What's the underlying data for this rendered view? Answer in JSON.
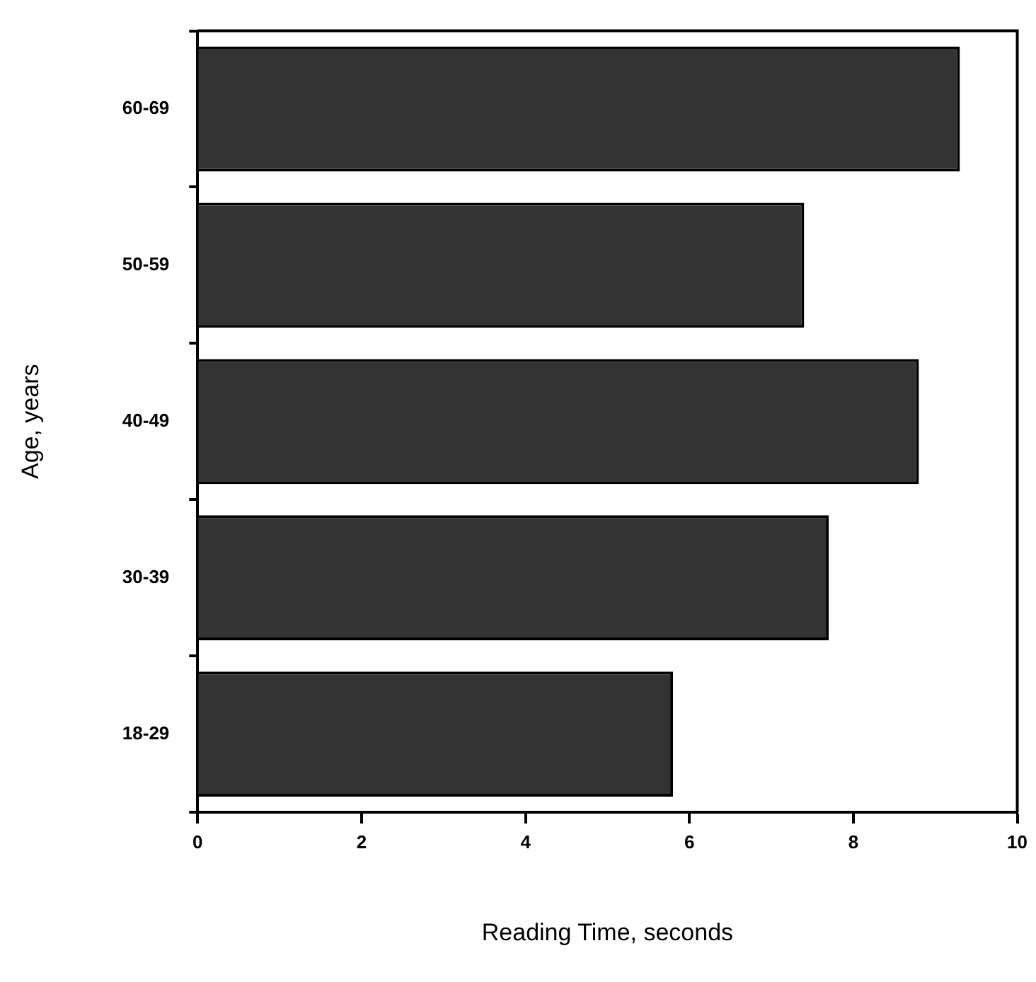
{
  "chart_data": {
    "type": "bar",
    "orientation": "horizontal",
    "xlabel": "Reading Time, seconds",
    "ylabel": "Age, years",
    "categories": [
      "60-69",
      "50-59",
      "40-49",
      "30-39",
      "18-29"
    ],
    "values": [
      9.3,
      7.4,
      8.8,
      7.7,
      5.8
    ],
    "color": "#333333",
    "xlim": [
      0,
      10
    ],
    "xticks": [
      0,
      2,
      4,
      6,
      8,
      10
    ]
  }
}
